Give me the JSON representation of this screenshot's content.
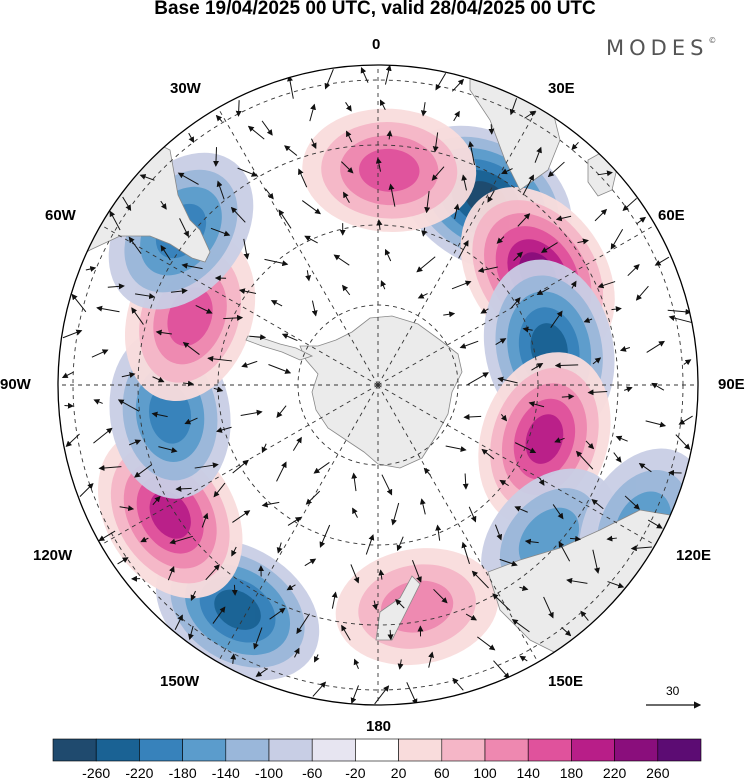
{
  "header": {
    "title": "Base 19/04/2025 00 UTC, valid 28/04/2025 00 UTC",
    "brand": "MODES",
    "brand_mark": "©"
  },
  "map": {
    "projection": "south-polar-stereographic",
    "center": "South Pole",
    "longitude_labels": {
      "lon_0": "0",
      "lon_30e": "30E",
      "lon_60e": "60E",
      "lon_90e": "90E",
      "lon_120e": "120E",
      "lon_150e": "150E",
      "lon_180": "180",
      "lon_150w": "150W",
      "lon_120w": "120W",
      "lon_90w": "90W",
      "lon_60w": "60W",
      "lon_30w": "30W"
    },
    "vector_scale_label": "30",
    "anomaly_centers": [
      {
        "sign": "negative",
        "lon": 30,
        "value": -220
      },
      {
        "sign": "positive",
        "lon": 55,
        "value": 240
      },
      {
        "sign": "negative",
        "lon": 78,
        "value": -200
      },
      {
        "sign": "positive",
        "lon": 108,
        "value": 190
      },
      {
        "sign": "negative",
        "lon": 132,
        "value": -100
      },
      {
        "sign": "negative",
        "lon": 118,
        "value": -120
      },
      {
        "sign": "positive",
        "lon": 170,
        "value": 120
      },
      {
        "sign": "negative",
        "lon": -148,
        "value": -180
      },
      {
        "sign": "positive",
        "lon": -122,
        "value": 200
      },
      {
        "sign": "negative",
        "lon": -98,
        "value": -150
      },
      {
        "sign": "positive",
        "lon": -70,
        "value": 170
      },
      {
        "sign": "negative",
        "lon": -52,
        "value": -170
      },
      {
        "sign": "positive",
        "lon": 3,
        "value": 170
      }
    ]
  },
  "colorbar": {
    "colors": [
      "#1f4a6e",
      "#1a6294",
      "#3782bb",
      "#5b9ccc",
      "#9ab7da",
      "#c8cee5",
      "#e7e5f1",
      "#ffffff",
      "#f9dcdc",
      "#f5b6c7",
      "#ee88b0",
      "#e0529c",
      "#b81e88",
      "#8a0e7c",
      "#5c0c73"
    ],
    "labels": [
      "-260",
      "-220",
      "-180",
      "-140",
      "-100",
      "-60",
      "-20",
      "20",
      "60",
      "100",
      "140",
      "180",
      "220",
      "260"
    ]
  }
}
